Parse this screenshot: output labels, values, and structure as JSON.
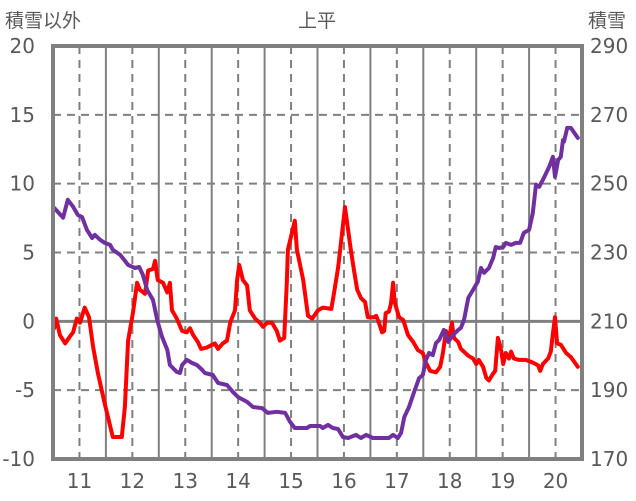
{
  "chart_data": {
    "type": "line",
    "title": "上平",
    "ylabel_left": "積雪以外",
    "ylabel_right": "積雪",
    "xlim": [
      10.5,
      20.5
    ],
    "ylim_left": [
      -10,
      20
    ],
    "ylim_right": [
      170,
      290
    ],
    "x_ticks": [
      "11",
      "12",
      "13",
      "14",
      "15",
      "16",
      "17",
      "18",
      "19",
      "20"
    ],
    "y_ticks_left": [
      "20",
      "15",
      "10",
      "5",
      "0",
      "-5",
      "-10"
    ],
    "y_ticks_right": [
      "290",
      "270",
      "250",
      "230",
      "210",
      "190",
      "170"
    ],
    "grid": true,
    "colors": {
      "red": "#ff0000",
      "purple": "#7030a0",
      "axis": "#808080"
    },
    "series": [
      {
        "name": "積雪以外",
        "axis": "left",
        "color": "#ff0000",
        "x": [
          10.52,
          10.56,
          10.63,
          10.73,
          10.82,
          10.88,
          10.95,
          11.01,
          11.1,
          11.18,
          11.26,
          11.35,
          11.48,
          11.63,
          11.8,
          11.86,
          11.92,
          12.01,
          12.09,
          12.14,
          12.24,
          12.3,
          12.39,
          12.43,
          12.48,
          12.58,
          12.66,
          12.71,
          12.75,
          12.84,
          12.94,
          13.03,
          13.09,
          13.15,
          13.24,
          13.3,
          13.41,
          13.51,
          13.56,
          13.62,
          13.71,
          13.79,
          13.85,
          13.94,
          13.98,
          14.02,
          14.09,
          14.17,
          14.22,
          14.32,
          14.41,
          14.47,
          14.55,
          14.64,
          14.73,
          14.79,
          14.87,
          14.92,
          14.94,
          15.07,
          15.11,
          15.23,
          15.32,
          15.4,
          15.51,
          15.6,
          15.76,
          15.81,
          15.89,
          15.93,
          16.02,
          16.13,
          16.19,
          16.25,
          16.32,
          16.4,
          16.45,
          16.57,
          16.61,
          16.66,
          16.72,
          16.76,
          16.79,
          16.85,
          16.89,
          16.93,
          16.96,
          17.04,
          17.12,
          17.21,
          17.31,
          17.4,
          17.49,
          17.55,
          17.63,
          17.74,
          17.82,
          17.87,
          17.93,
          17.99,
          18.04,
          18.08,
          18.16,
          18.21,
          18.35,
          18.44,
          18.5,
          18.55,
          18.63,
          18.69,
          18.74,
          18.82,
          18.86,
          18.91,
          18.97,
          19.01,
          19.06,
          19.12,
          19.16,
          19.21,
          19.31,
          19.44,
          19.57,
          19.67,
          19.71,
          19.76,
          19.86,
          19.91,
          19.95,
          19.99,
          20.03,
          20.1,
          20.2,
          20.29,
          20.42
        ],
        "y": [
          -0.5,
          0.2,
          -1.0,
          -1.6,
          -1.1,
          -0.8,
          0.2,
          -0.1,
          1.0,
          0.3,
          -1.9,
          -3.8,
          -6.0,
          -8.4,
          -8.4,
          -6.2,
          -1.4,
          0.6,
          2.8,
          2.3,
          2.0,
          3.7,
          3.8,
          4.4,
          3.0,
          2.8,
          2.1,
          2.8,
          0.8,
          0.2,
          -0.7,
          -0.8,
          -0.5,
          -1.0,
          -1.5,
          -2.0,
          -1.9,
          -1.7,
          -1.6,
          -2.0,
          -1.6,
          -1.4,
          -0.1,
          0.8,
          3.0,
          4.1,
          3.0,
          2.6,
          0.8,
          0.2,
          -0.1,
          -0.4,
          -0.1,
          -0.1,
          -0.7,
          -1.4,
          -1.2,
          2.8,
          5.2,
          7.3,
          5.2,
          3.0,
          0.4,
          0.2,
          0.8,
          1.0,
          0.9,
          2.0,
          3.9,
          5.2,
          8.3,
          5.2,
          3.7,
          2.3,
          1.7,
          1.4,
          0.3,
          0.3,
          0.4,
          -0.1,
          -0.8,
          -0.7,
          0.6,
          0.7,
          1.3,
          2.8,
          1.4,
          0.3,
          0.1,
          -1.0,
          -1.5,
          -2.1,
          -2.3,
          -3.0,
          -3.6,
          -3.7,
          -3.3,
          -2.3,
          -0.7,
          -1.2,
          -0.1,
          -1.2,
          -1.5,
          -2.0,
          -2.5,
          -2.7,
          -3.1,
          -2.8,
          -3.3,
          -4.1,
          -4.3,
          -3.8,
          -3.6,
          -1.2,
          -2.1,
          -3.1,
          -2.3,
          -2.7,
          -2.2,
          -2.7,
          -2.8,
          -2.8,
          -3.0,
          -3.2,
          -3.6,
          -3.1,
          -2.7,
          -2.2,
          -0.9,
          0.3,
          -1.6,
          -1.7,
          -2.3,
          -2.6,
          -3.3
        ]
      },
      {
        "name": "積雪",
        "axis": "right",
        "color": "#7030a0",
        "x": [
          10.52,
          10.59,
          10.69,
          10.78,
          10.88,
          10.97,
          11.05,
          11.14,
          11.24,
          11.29,
          11.39,
          11.48,
          11.58,
          11.63,
          11.77,
          11.92,
          12.05,
          12.13,
          12.2,
          12.28,
          12.39,
          12.47,
          12.56,
          12.66,
          12.71,
          12.84,
          12.9,
          12.94,
          13.03,
          13.13,
          13.22,
          13.32,
          13.37,
          13.52,
          13.62,
          13.79,
          13.9,
          14.0,
          14.17,
          14.28,
          14.45,
          14.56,
          14.73,
          14.89,
          14.98,
          15.07,
          15.3,
          15.36,
          15.55,
          15.6,
          15.7,
          15.79,
          15.89,
          15.98,
          16.08,
          16.23,
          16.32,
          16.42,
          16.55,
          16.85,
          16.93,
          17.02,
          17.08,
          17.14,
          17.23,
          17.32,
          17.42,
          17.49,
          17.55,
          17.61,
          17.68,
          17.74,
          17.8,
          17.89,
          17.97,
          18.06,
          18.16,
          18.21,
          18.27,
          18.35,
          18.44,
          18.53,
          18.59,
          18.65,
          18.74,
          18.82,
          18.87,
          18.93,
          19.01,
          19.06,
          19.16,
          19.25,
          19.33,
          19.4,
          19.5,
          19.57,
          19.63,
          19.69,
          19.78,
          19.88,
          19.95,
          19.99,
          20.05,
          20.1,
          20.14,
          20.16,
          20.22,
          20.29,
          20.42
        ],
        "y": [
          243.0,
          241.8,
          240.1,
          245.3,
          243.3,
          240.9,
          240.3,
          236.6,
          234.2,
          235.1,
          233.7,
          232.8,
          232.2,
          230.8,
          229.3,
          226.4,
          225.5,
          225.8,
          223.5,
          219.1,
          216.2,
          210.4,
          205.5,
          201.7,
          197.3,
          195.3,
          195.0,
          197.3,
          198.8,
          197.9,
          197.3,
          195.9,
          195.0,
          194.4,
          192.1,
          191.5,
          189.5,
          188.0,
          186.6,
          185.1,
          184.8,
          183.4,
          183.7,
          183.4,
          180.8,
          179.0,
          179.0,
          179.6,
          179.6,
          179.0,
          179.9,
          179.0,
          178.7,
          176.4,
          176.1,
          177.0,
          176.1,
          177.0,
          176.1,
          176.1,
          177.0,
          176.1,
          177.6,
          182.2,
          185.1,
          189.2,
          193.5,
          194.4,
          198.8,
          200.8,
          200.2,
          203.7,
          204.6,
          207.5,
          204.0,
          206.0,
          207.5,
          208.1,
          210.4,
          216.8,
          219.1,
          221.5,
          225.5,
          224.1,
          225.5,
          228.4,
          231.6,
          231.3,
          231.6,
          232.8,
          232.2,
          232.8,
          232.8,
          235.7,
          236.6,
          241.5,
          249.7,
          249.1,
          251.7,
          254.9,
          257.8,
          252.0,
          256.9,
          257.8,
          262.7,
          262.2,
          266.2,
          266.2,
          263.3
        ]
      }
    ]
  }
}
